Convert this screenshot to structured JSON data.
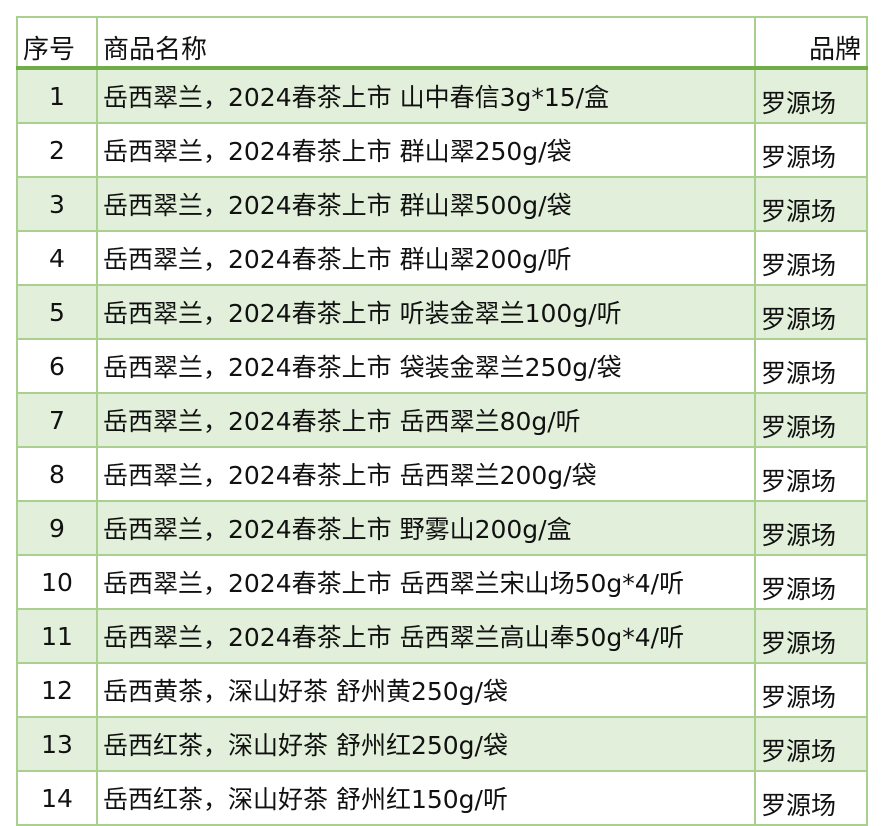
{
  "table": {
    "headers": [
      "序号",
      "商品名称",
      "品牌"
    ],
    "rows": [
      [
        "1",
        "岳西翠兰，2024春茶上市 山中春信3g*15/盒",
        "罗源场"
      ],
      [
        "2",
        "岳西翠兰，2024春茶上市 群山翠250g/袋",
        "罗源场"
      ],
      [
        "3",
        "岳西翠兰，2024春茶上市 群山翠500g/袋",
        "罗源场"
      ],
      [
        "4",
        "岳西翠兰，2024春茶上市 群山翠200g/听",
        "罗源场"
      ],
      [
        "5",
        "岳西翠兰，2024春茶上市 听装金翠兰100g/听",
        "罗源场"
      ],
      [
        "6",
        "岳西翠兰，2024春茶上市 袋装金翠兰250g/袋",
        "罗源场"
      ],
      [
        "7",
        "岳西翠兰，2024春茶上市 岳西翠兰80g/听",
        "罗源场"
      ],
      [
        "8",
        "岳西翠兰，2024春茶上市 岳西翠兰200g/袋",
        "罗源场"
      ],
      [
        "9",
        "岳西翠兰，2024春茶上市 野雾山200g/盒",
        "罗源场"
      ],
      [
        "10",
        "岳西翠兰，2024春茶上市 岳西翠兰宋山场50g*4/听",
        "罗源场"
      ],
      [
        "11",
        "岳西翠兰，2024春茶上市 岳西翠兰高山奉50g*4/听",
        "罗源场"
      ],
      [
        "12",
        "岳西黄茶，深山好茶 舒州黄250g/袋",
        "罗源场"
      ],
      [
        "13",
        "岳西红茶，深山好茶 舒州红250g/袋",
        "罗源场"
      ],
      [
        "14",
        "岳西红茶，深山好茶 舒州红150g/听",
        "罗源场"
      ]
    ]
  },
  "colors": {
    "border": "#a9d08e",
    "header_rule": "#70ad47",
    "band": "#e2efda"
  }
}
